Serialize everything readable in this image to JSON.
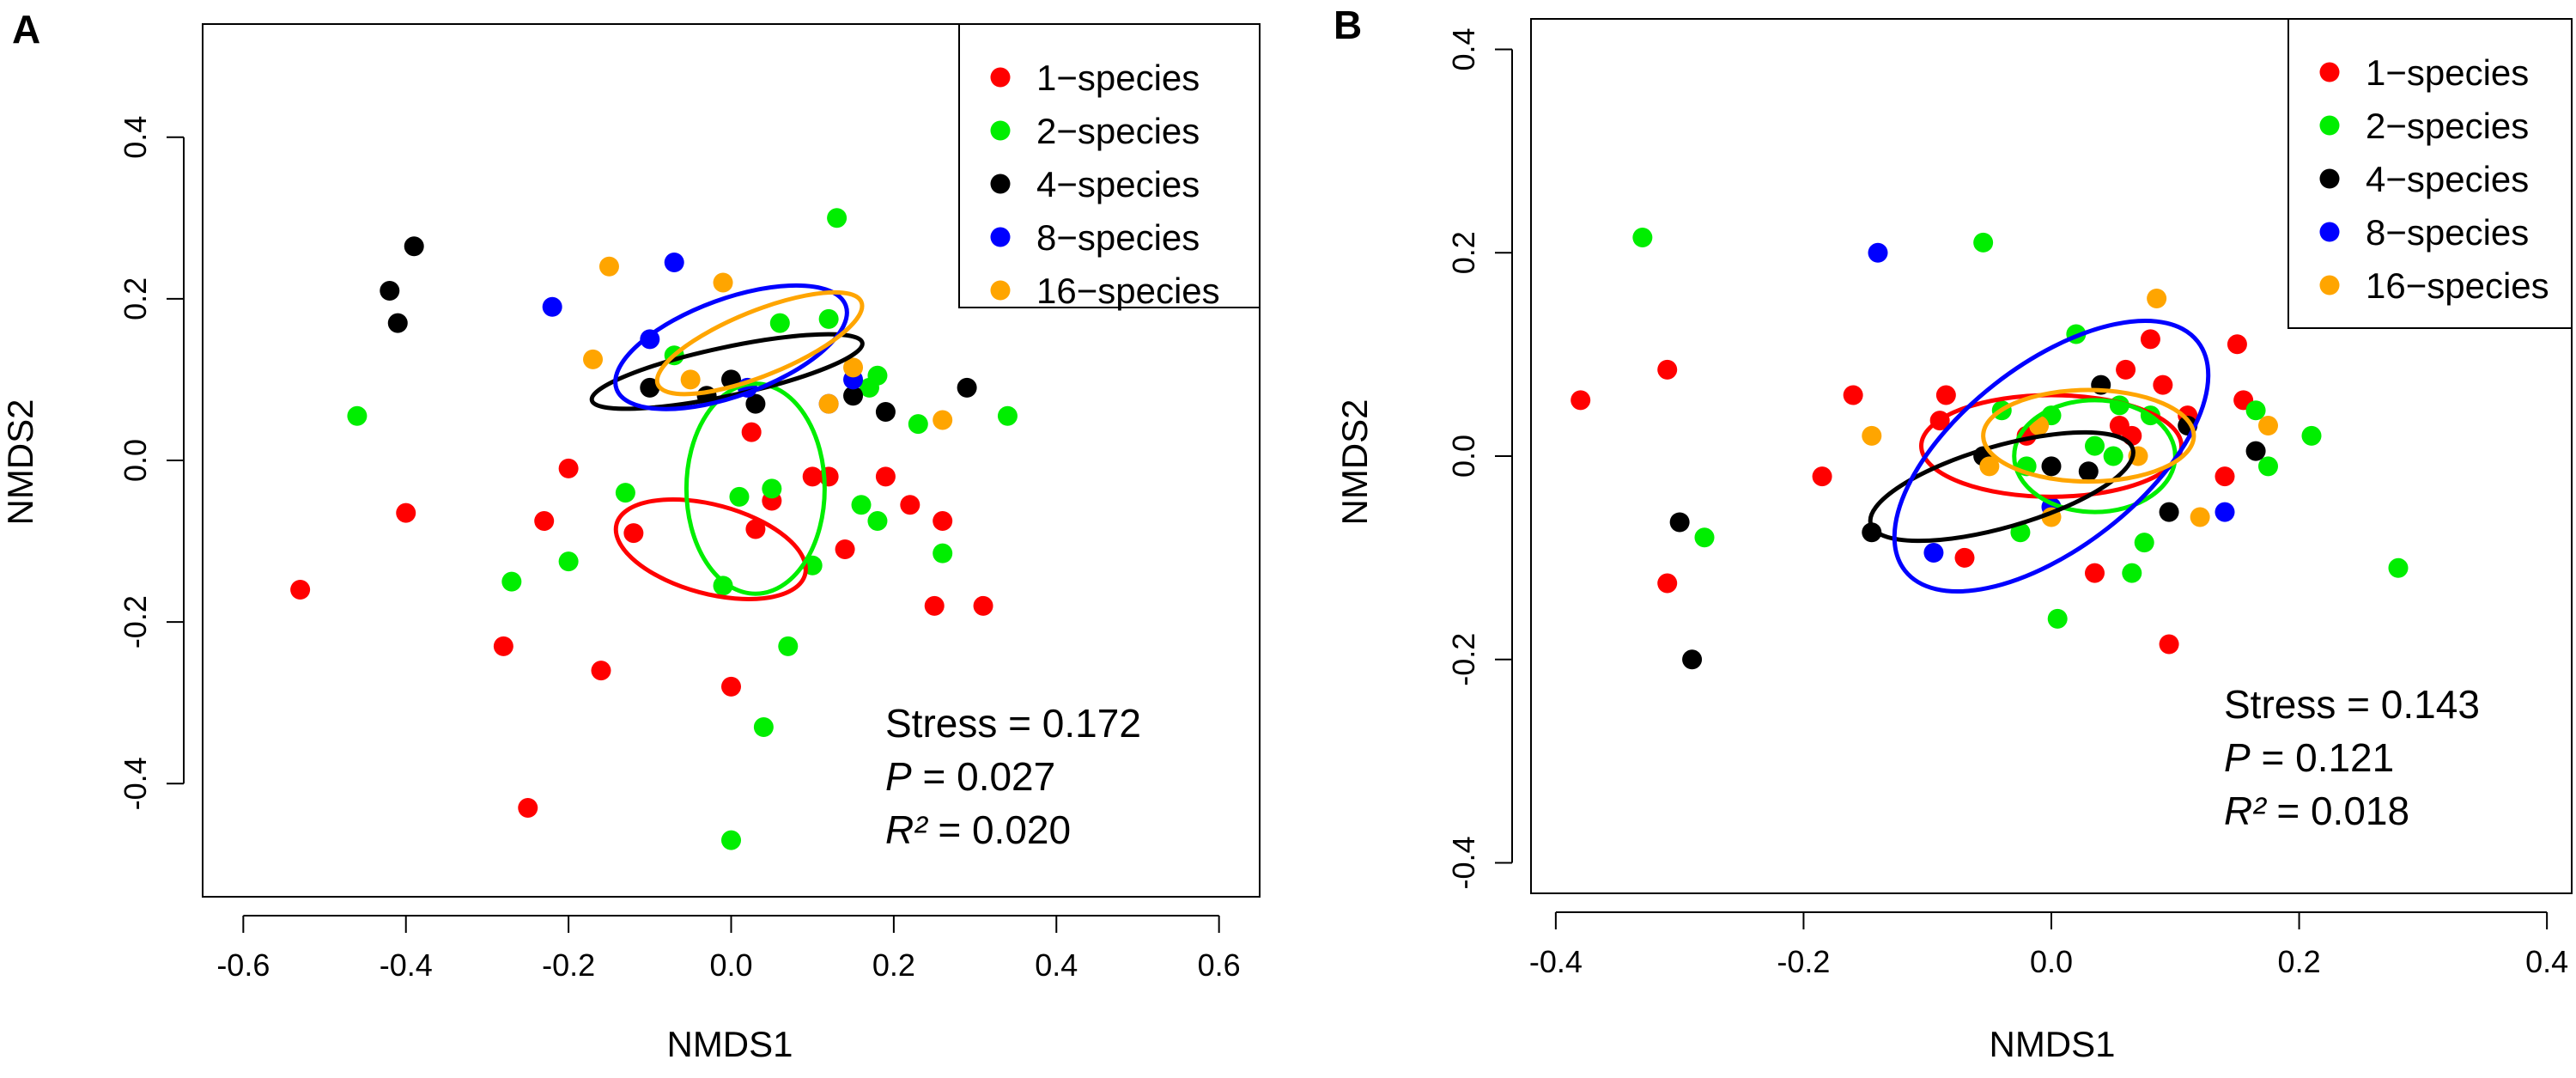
{
  "chart_data": [
    {
      "type": "scatter",
      "panel_label": "A",
      "xlabel": "NMDS1",
      "ylabel": "NMDS2",
      "xlim": [
        -0.65,
        0.65
      ],
      "ylim": [
        -0.54,
        0.54
      ],
      "xticks": [
        "-0.6",
        "-0.4",
        "-0.2",
        "0.0",
        "0.2",
        "0.4",
        "0.6"
      ],
      "xtick_values": [
        -0.6,
        -0.4,
        -0.2,
        0.0,
        0.2,
        0.4,
        0.6
      ],
      "yticks": [
        "-0.4",
        "-0.2",
        "0.0",
        "0.2",
        "0.4"
      ],
      "ytick_values": [
        -0.4,
        -0.2,
        0.0,
        0.2,
        0.4
      ],
      "legend_position": "top-right",
      "grid": false,
      "stats": {
        "stress": "Stress = 0.172",
        "p_symbol": "P",
        "p_value": " = 0.027",
        "r2_symbol": "R²",
        "r2_value": " = 0.020"
      },
      "series": [
        {
          "name": "1−species",
          "color": "#ff0000",
          "points": [
            [
              -0.53,
              -0.16
            ],
            [
              -0.4,
              -0.065
            ],
            [
              -0.25,
              -0.43
            ],
            [
              -0.28,
              -0.23
            ],
            [
              -0.23,
              -0.075
            ],
            [
              -0.2,
              -0.01
            ],
            [
              -0.16,
              -0.26
            ],
            [
              -0.12,
              -0.09
            ],
            [
              0.0,
              -0.28
            ],
            [
              0.03,
              -0.085
            ],
            [
              0.05,
              -0.05
            ],
            [
              0.025,
              0.035
            ],
            [
              0.1,
              -0.02
            ],
            [
              0.12,
              -0.02
            ],
            [
              0.14,
              -0.11
            ],
            [
              0.19,
              -0.02
            ],
            [
              0.22,
              -0.055
            ],
            [
              0.25,
              -0.18
            ],
            [
              0.26,
              -0.075
            ],
            [
              0.31,
              -0.18
            ]
          ],
          "ellipse": {
            "cx": -0.025,
            "cy": -0.11,
            "rx": 0.12,
            "ry": 0.055,
            "angle_deg": 15
          }
        },
        {
          "name": "2−species",
          "color": "#00ee00",
          "points": [
            [
              -0.46,
              0.055
            ],
            [
              -0.27,
              -0.15
            ],
            [
              -0.2,
              -0.125
            ],
            [
              -0.13,
              -0.04
            ],
            [
              -0.07,
              0.13
            ],
            [
              -0.01,
              -0.155
            ],
            [
              0.01,
              -0.045
            ],
            [
              0.04,
              -0.33
            ],
            [
              0.05,
              -0.035
            ],
            [
              0.06,
              0.17
            ],
            [
              0.07,
              -0.23
            ],
            [
              0.1,
              -0.13
            ],
            [
              0.12,
              0.175
            ],
            [
              0.13,
              0.3
            ],
            [
              0.16,
              -0.055
            ],
            [
              0.17,
              0.09
            ],
            [
              0.18,
              -0.075
            ],
            [
              0.18,
              0.105
            ],
            [
              0.23,
              0.045
            ],
            [
              0.26,
              -0.115
            ],
            [
              0.34,
              0.055
            ],
            [
              0.0,
              -0.47
            ]
          ],
          "ellipse": {
            "cx": 0.03,
            "cy": -0.035,
            "rx": 0.085,
            "ry": 0.13,
            "angle_deg": 0
          }
        },
        {
          "name": "4−species",
          "color": "#000000",
          "points": [
            [
              -0.42,
              0.21
            ],
            [
              -0.41,
              0.17
            ],
            [
              -0.39,
              0.265
            ],
            [
              -0.1,
              0.09
            ],
            [
              -0.03,
              0.08
            ],
            [
              0.0,
              0.1
            ],
            [
              0.03,
              0.07
            ],
            [
              0.15,
              0.08
            ],
            [
              0.19,
              0.06
            ],
            [
              0.29,
              0.09
            ]
          ],
          "ellipse": {
            "cx": -0.005,
            "cy": 0.11,
            "rx": 0.17,
            "ry": 0.03,
            "angle_deg": -12
          }
        },
        {
          "name": "8−species",
          "color": "#0000ff",
          "points": [
            [
              -0.22,
              0.19
            ],
            [
              -0.1,
              0.15
            ],
            [
              -0.07,
              0.245
            ],
            [
              0.02,
              0.09
            ],
            [
              0.12,
              0.07
            ],
            [
              0.15,
              0.1
            ]
          ],
          "ellipse": {
            "cx": 0.0,
            "cy": 0.14,
            "rx": 0.15,
            "ry": 0.06,
            "angle_deg": -20
          }
        },
        {
          "name": "16−species",
          "color": "#ffa500",
          "points": [
            [
              -0.17,
              0.125
            ],
            [
              -0.15,
              0.24
            ],
            [
              -0.05,
              0.1
            ],
            [
              -0.01,
              0.22
            ],
            [
              0.12,
              0.07
            ],
            [
              0.15,
              0.115
            ],
            [
              0.26,
              0.05
            ]
          ],
          "ellipse": {
            "cx": 0.035,
            "cy": 0.145,
            "rx": 0.135,
            "ry": 0.04,
            "angle_deg": -22
          }
        }
      ]
    },
    {
      "type": "scatter",
      "panel_label": "B",
      "xlabel": "NMDS1",
      "ylabel": "NMDS2",
      "xlim": [
        -0.42,
        0.42
      ],
      "ylim": [
        -0.43,
        0.43
      ],
      "xticks": [
        "-0.4",
        "-0.2",
        "0.0",
        "0.2",
        "0.4"
      ],
      "xtick_values": [
        -0.4,
        -0.2,
        0.0,
        0.2,
        0.4
      ],
      "yticks": [
        "-0.4",
        "-0.2",
        "0.0",
        "0.2",
        "0.4"
      ],
      "ytick_values": [
        -0.4,
        -0.2,
        0.0,
        0.2,
        0.4
      ],
      "legend_position": "top-right",
      "grid": false,
      "stats": {
        "stress": "Stress = 0.143",
        "p_symbol": "P",
        "p_value": " = 0.121",
        "r2_symbol": "R²",
        "r2_value": " = 0.018"
      },
      "series": [
        {
          "name": "1−species",
          "color": "#ff0000",
          "points": [
            [
              -0.38,
              0.055
            ],
            [
              -0.31,
              0.085
            ],
            [
              -0.31,
              -0.125
            ],
            [
              -0.185,
              -0.02
            ],
            [
              -0.16,
              0.06
            ],
            [
              -0.09,
              0.035
            ],
            [
              -0.085,
              0.06
            ],
            [
              -0.07,
              -0.1
            ],
            [
              -0.02,
              0.02
            ],
            [
              0.035,
              -0.115
            ],
            [
              0.055,
              0.03
            ],
            [
              0.06,
              0.085
            ],
            [
              0.065,
              0.02
            ],
            [
              0.08,
              0.115
            ],
            [
              0.09,
              0.07
            ],
            [
              0.095,
              -0.185
            ],
            [
              0.11,
              0.04
            ],
            [
              0.14,
              -0.02
            ],
            [
              0.15,
              0.11
            ],
            [
              0.155,
              0.055
            ]
          ],
          "ellipse": {
            "cx": 0.0,
            "cy": 0.01,
            "rx": 0.105,
            "ry": 0.05,
            "angle_deg": 0
          }
        },
        {
          "name": "2−species",
          "color": "#00ee00",
          "points": [
            [
              -0.33,
              0.215
            ],
            [
              -0.28,
              -0.08
            ],
            [
              -0.055,
              0.21
            ],
            [
              -0.04,
              0.045
            ],
            [
              -0.02,
              -0.01
            ],
            [
              0.0,
              0.04
            ],
            [
              0.005,
              -0.16
            ],
            [
              0.02,
              0.12
            ],
            [
              0.035,
              0.01
            ],
            [
              0.05,
              0.0
            ],
            [
              0.055,
              0.05
            ],
            [
              0.065,
              -0.115
            ],
            [
              0.075,
              -0.085
            ],
            [
              0.08,
              0.04
            ],
            [
              0.165,
              0.045
            ],
            [
              0.175,
              -0.01
            ],
            [
              0.21,
              0.02
            ],
            [
              0.28,
              -0.11
            ],
            [
              -0.025,
              -0.075
            ]
          ],
          "ellipse": {
            "cx": 0.035,
            "cy": 0.0,
            "rx": 0.065,
            "ry": 0.055,
            "angle_deg": 0
          }
        },
        {
          "name": "4−species",
          "color": "#000000",
          "points": [
            [
              -0.3,
              -0.065
            ],
            [
              -0.29,
              -0.2
            ],
            [
              -0.145,
              -0.075
            ],
            [
              -0.055,
              0.0
            ],
            [
              0.0,
              -0.01
            ],
            [
              0.03,
              -0.015
            ],
            [
              0.04,
              0.07
            ],
            [
              0.095,
              -0.055
            ],
            [
              0.11,
              0.03
            ],
            [
              0.165,
              0.005
            ]
          ],
          "ellipse": {
            "cx": -0.04,
            "cy": -0.03,
            "rx": 0.11,
            "ry": 0.04,
            "angle_deg": -16
          }
        },
        {
          "name": "8−species",
          "color": "#0000ff",
          "points": [
            [
              -0.14,
              0.2
            ],
            [
              -0.095,
              -0.095
            ],
            [
              0.0,
              -0.05
            ],
            [
              0.14,
              -0.055
            ]
          ],
          "ellipse": {
            "cx": 0.0,
            "cy": 0.0,
            "rx": 0.15,
            "ry": 0.09,
            "angle_deg": -38
          }
        },
        {
          "name": "16−species",
          "color": "#ffa500",
          "points": [
            [
              -0.145,
              0.02
            ],
            [
              -0.05,
              -0.01
            ],
            [
              -0.01,
              0.03
            ],
            [
              0.0,
              -0.06
            ],
            [
              0.07,
              0.0
            ],
            [
              0.085,
              0.155
            ],
            [
              0.12,
              -0.06
            ],
            [
              0.175,
              0.03
            ]
          ],
          "ellipse": {
            "cx": 0.03,
            "cy": 0.02,
            "rx": 0.085,
            "ry": 0.045,
            "angle_deg": 0
          }
        }
      ]
    }
  ]
}
